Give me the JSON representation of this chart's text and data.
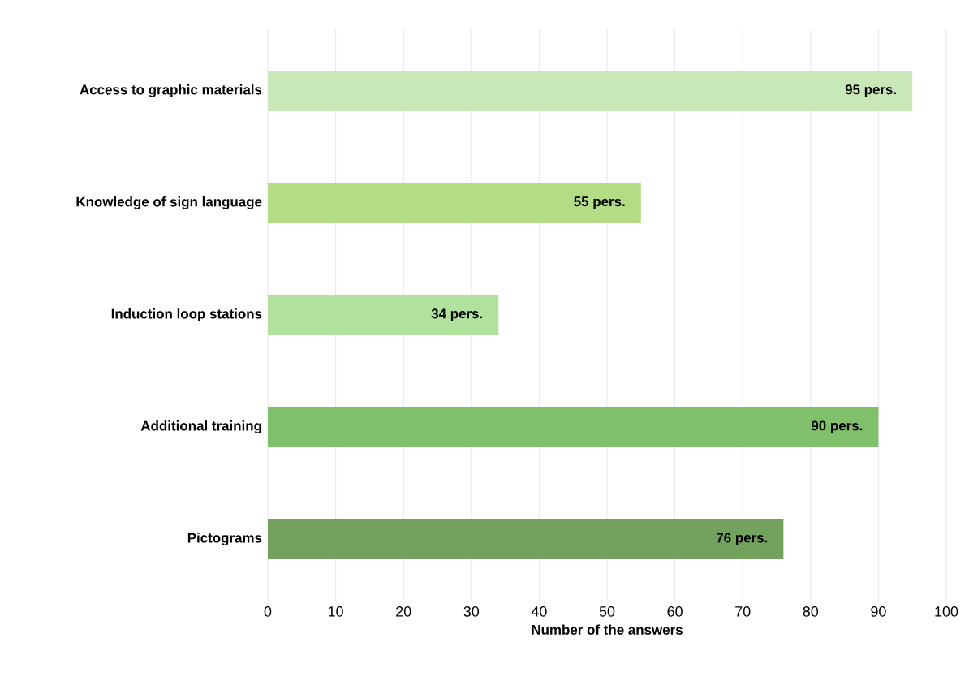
{
  "chart_data": {
    "type": "bar",
    "orientation": "horizontal",
    "xlabel": "Number of the answers",
    "categories": [
      "Access to graphic materials",
      "Knowledge of sign language",
      "Induction loop stations",
      "Additional training",
      "Pictograms"
    ],
    "values": [
      95,
      55,
      34,
      90,
      76
    ],
    "value_labels": [
      "95 pers.",
      "55 pers.",
      "34 pers.",
      "90 pers.",
      "76 pers."
    ],
    "colors": [
      "#c9e8b8",
      "#b3dc84",
      "#b0e29e",
      "#80c06a",
      "#72a25e"
    ],
    "xlim": [
      0,
      100
    ],
    "xticks": [
      0,
      10,
      20,
      30,
      40,
      50,
      60,
      70,
      80,
      90,
      100
    ],
    "grid": "x"
  }
}
